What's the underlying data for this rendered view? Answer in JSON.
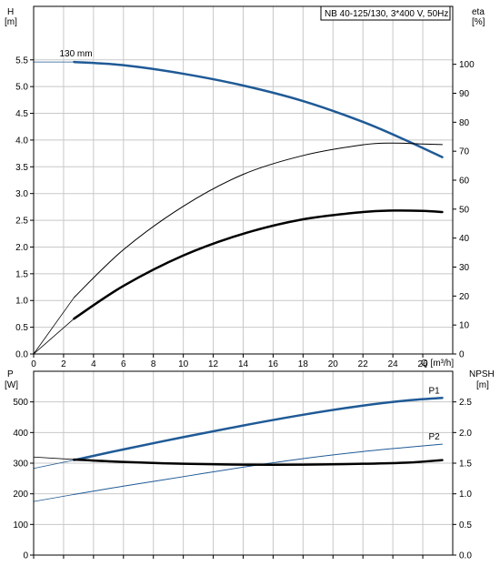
{
  "chart_data": [
    {
      "type": "line",
      "title": "NB 40-125/130, 3*400 V, 50Hz",
      "xlabel": "Q [m³/h]",
      "ylabel_left": [
        "H",
        "[m]"
      ],
      "ylabel_right": [
        "eta",
        "[%]"
      ],
      "xlim": [
        0,
        28
      ],
      "xticks": [
        0,
        2,
        4,
        6,
        8,
        10,
        12,
        14,
        16,
        18,
        20,
        22,
        24,
        26
      ],
      "ylim_left": [
        0,
        6.5
      ],
      "yticks_left": [
        0.0,
        0.5,
        1.0,
        1.5,
        2.0,
        2.5,
        3.0,
        3.5,
        4.0,
        4.5,
        5.0,
        5.5
      ],
      "ylim_right": [
        0,
        120
      ],
      "yticks_right": [
        0,
        10,
        20,
        30,
        40,
        50,
        60,
        70,
        80,
        90,
        100
      ],
      "grid": true,
      "annotations": [
        {
          "text": "130 mm",
          "x": 2.7,
          "y": 5.5
        }
      ],
      "series": [
        {
          "axis": "left",
          "color": "#1f5a96",
          "width": 2.5,
          "dash_from": 0,
          "dash_to": 2.7,
          "x": [
            0,
            2.7,
            6,
            10,
            14,
            18,
            22,
            25,
            27.3
          ],
          "y": [
            5.46,
            5.46,
            5.4,
            5.24,
            5.02,
            4.73,
            4.34,
            3.98,
            3.68
          ]
        },
        {
          "axis": "right",
          "color": "#000000",
          "width": 1,
          "dash_from": 0,
          "dash_to": 2.7,
          "x": [
            0,
            2.7,
            6,
            10,
            14,
            18,
            22,
            24,
            26,
            27.3
          ],
          "y": [
            0,
            19.5,
            36,
            51,
            62,
            68.5,
            72.2,
            72.8,
            72.5,
            72.3
          ]
        },
        {
          "axis": "right",
          "color": "#000000",
          "width": 2.5,
          "dash_from": 0,
          "dash_to": 2.7,
          "x": [
            0,
            2.7,
            6,
            10,
            14,
            18,
            22,
            24,
            26,
            27.3
          ],
          "y": [
            0,
            12.2,
            23.5,
            34,
            41.5,
            46.5,
            49,
            49.5,
            49.4,
            49
          ]
        }
      ]
    },
    {
      "type": "line",
      "ylabel_left": [
        "P",
        "[W]"
      ],
      "ylabel_right": [
        "NPSH",
        "[m]"
      ],
      "xlim": [
        0,
        28
      ],
      "ylim_left": [
        0,
        600
      ],
      "yticks_left": [
        0,
        100,
        200,
        300,
        400,
        500
      ],
      "ylim_right": [
        0,
        3.0
      ],
      "yticks_right": [
        0.0,
        0.5,
        1.0,
        1.5,
        2.0,
        2.5
      ],
      "grid": true,
      "series": [
        {
          "name": "P1",
          "axis": "left",
          "color": "#1f5a96",
          "width": 2.5,
          "dash_from": 0,
          "dash_to": 2.7,
          "x": [
            0,
            2.7,
            6,
            10,
            14,
            18,
            22,
            25,
            27.3
          ],
          "y": [
            283,
            310,
            345,
            385,
            423,
            458,
            488,
            505,
            513
          ]
        },
        {
          "name": "P2",
          "axis": "left",
          "color": "#1f5a96",
          "width": 1,
          "dash_from": 0,
          "dash_to": 2.7,
          "x": [
            0,
            2.7,
            6,
            10,
            14,
            18,
            22,
            25,
            27.3
          ],
          "y": [
            175,
            198,
            225,
            256,
            287,
            315,
            338,
            352,
            362
          ]
        },
        {
          "axis": "right",
          "color": "#000000",
          "width": 2.5,
          "dash_from": 0,
          "dash_to": 2.7,
          "x": [
            0,
            2.7,
            6,
            10,
            14,
            18,
            22,
            25,
            27.3
          ],
          "y": [
            1.6,
            1.56,
            1.52,
            1.49,
            1.475,
            1.475,
            1.49,
            1.51,
            1.55
          ]
        }
      ]
    }
  ]
}
